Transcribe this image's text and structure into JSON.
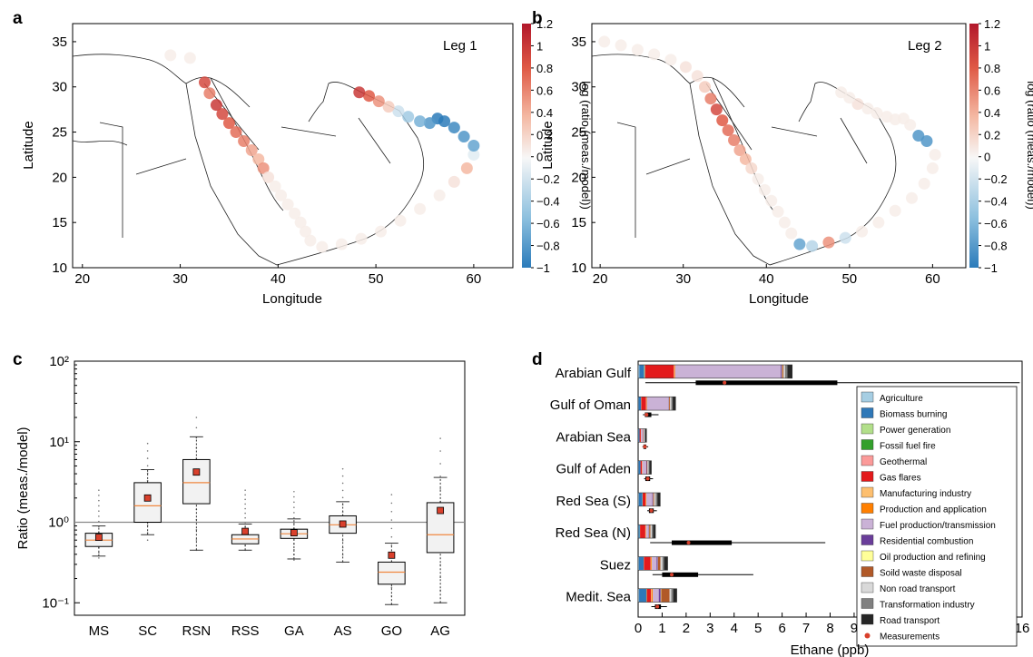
{
  "panels": {
    "a": {
      "letter": "a",
      "leg_label": "Leg 1",
      "xlabel": "Longitude",
      "ylabel": "Latitude",
      "xticks": [
        "20",
        "30",
        "40",
        "50",
        "60"
      ],
      "yticks": [
        "10",
        "15",
        "20",
        "25",
        "30",
        "35"
      ],
      "colorbar_label": "log (ratio (meas./model))",
      "colorbar_ticks": [
        "1.2",
        "1",
        "0.8",
        "0.6",
        "0.4",
        "0.2",
        "0",
        "−0.2",
        "−0.4",
        "−0.6",
        "−0.8",
        "−1"
      ]
    },
    "b": {
      "letter": "b",
      "leg_label": "Leg 2",
      "xlabel": "Longitude",
      "ylabel": "Latitude",
      "xticks": [
        "20",
        "30",
        "40",
        "50",
        "60"
      ],
      "yticks": [
        "10",
        "15",
        "20",
        "25",
        "30",
        "35"
      ],
      "colorbar_label": "log (ratio (meas./model))",
      "colorbar_ticks": [
        "1.2",
        "1",
        "0.8",
        "0.6",
        "0.4",
        "0.2",
        "0",
        "−0.2",
        "−0.4",
        "−0.6",
        "−0.8",
        "−1"
      ]
    },
    "c": {
      "letter": "c"
    },
    "d": {
      "letter": "d"
    }
  },
  "chart_data": [
    {
      "type": "scatter",
      "panel": "a",
      "title": "Leg 1",
      "xlabel": "Longitude",
      "ylabel": "Latitude",
      "xlim": [
        19,
        64
      ],
      "ylim": [
        10,
        37
      ],
      "colorbar": {
        "label": "log (ratio (meas./model))",
        "range": [
          -1,
          1.2
        ]
      },
      "track": [
        {
          "lon": 29,
          "lat": 33.5,
          "v": 0.05
        },
        {
          "lon": 31,
          "lat": 33.2,
          "v": 0.05
        },
        {
          "lon": 32.5,
          "lat": 30.5,
          "v": 0.9
        },
        {
          "lon": 33,
          "lat": 29.3,
          "v": 0.6
        },
        {
          "lon": 33.7,
          "lat": 28,
          "v": 1.0
        },
        {
          "lon": 34.3,
          "lat": 27,
          "v": 0.9
        },
        {
          "lon": 35,
          "lat": 26,
          "v": 0.8
        },
        {
          "lon": 35.7,
          "lat": 25,
          "v": 0.7
        },
        {
          "lon": 36.5,
          "lat": 24,
          "v": 0.6
        },
        {
          "lon": 37.3,
          "lat": 23,
          "v": 0.4
        },
        {
          "lon": 38,
          "lat": 22,
          "v": 0.3
        },
        {
          "lon": 38.5,
          "lat": 21,
          "v": 0.5
        },
        {
          "lon": 39,
          "lat": 20,
          "v": 0.1
        },
        {
          "lon": 39.7,
          "lat": 19,
          "v": 0.05
        },
        {
          "lon": 40.3,
          "lat": 18,
          "v": 0.05
        },
        {
          "lon": 41,
          "lat": 17,
          "v": 0.05
        },
        {
          "lon": 41.7,
          "lat": 16,
          "v": 0.05
        },
        {
          "lon": 42.3,
          "lat": 15,
          "v": 0.05
        },
        {
          "lon": 42.8,
          "lat": 14,
          "v": 0.05
        },
        {
          "lon": 43.3,
          "lat": 13,
          "v": 0.05
        },
        {
          "lon": 44.5,
          "lat": 12.3,
          "v": 0.05
        },
        {
          "lon": 46.5,
          "lat": 12.6,
          "v": 0.05
        },
        {
          "lon": 48.5,
          "lat": 13.2,
          "v": 0.05
        },
        {
          "lon": 50.5,
          "lat": 14,
          "v": 0.05
        },
        {
          "lon": 52.5,
          "lat": 15.2,
          "v": 0.05
        },
        {
          "lon": 54.5,
          "lat": 16.5,
          "v": 0.05
        },
        {
          "lon": 56.5,
          "lat": 18,
          "v": 0.05
        },
        {
          "lon": 58,
          "lat": 19.5,
          "v": 0.1
        },
        {
          "lon": 59.3,
          "lat": 21,
          "v": 0.3
        },
        {
          "lon": 60,
          "lat": 22.5,
          "v": -0.1
        },
        {
          "lon": 60,
          "lat": 23.5,
          "v": -0.7
        },
        {
          "lon": 59,
          "lat": 24.5,
          "v": -0.8
        },
        {
          "lon": 58,
          "lat": 25.5,
          "v": -0.9
        },
        {
          "lon": 57,
          "lat": 26.2,
          "v": -1.0
        },
        {
          "lon": 56.3,
          "lat": 26.5,
          "v": -1.0
        },
        {
          "lon": 55.5,
          "lat": 26,
          "v": -0.8
        },
        {
          "lon": 54.5,
          "lat": 26.2,
          "v": -0.6
        },
        {
          "lon": 53.3,
          "lat": 26.7,
          "v": -0.4
        },
        {
          "lon": 52.3,
          "lat": 27.3,
          "v": -0.2
        },
        {
          "lon": 51.3,
          "lat": 27.8,
          "v": 0.2
        },
        {
          "lon": 50.3,
          "lat": 28.4,
          "v": 0.5
        },
        {
          "lon": 49.3,
          "lat": 29,
          "v": 0.8
        },
        {
          "lon": 48.3,
          "lat": 29.4,
          "v": 1.0
        }
      ]
    },
    {
      "type": "scatter",
      "panel": "b",
      "title": "Leg 2",
      "xlabel": "Longitude",
      "ylabel": "Latitude",
      "xlim": [
        19,
        64
      ],
      "ylim": [
        10,
        37
      ],
      "colorbar": {
        "label": "log (ratio (meas./model))",
        "range": [
          -1,
          1.2
        ]
      },
      "track": [
        {
          "lon": 20.5,
          "lat": 35,
          "v": 0.05
        },
        {
          "lon": 22.5,
          "lat": 34.6,
          "v": 0.05
        },
        {
          "lon": 24.5,
          "lat": 34.1,
          "v": 0.05
        },
        {
          "lon": 26.5,
          "lat": 33.6,
          "v": 0.05
        },
        {
          "lon": 28.5,
          "lat": 33,
          "v": 0.05
        },
        {
          "lon": 30.3,
          "lat": 32.2,
          "v": 0.1
        },
        {
          "lon": 31.7,
          "lat": 31.2,
          "v": 0.1
        },
        {
          "lon": 32.6,
          "lat": 30,
          "v": 0.2
        },
        {
          "lon": 33.3,
          "lat": 28.7,
          "v": 0.6
        },
        {
          "lon": 34,
          "lat": 27.5,
          "v": 0.9
        },
        {
          "lon": 34.7,
          "lat": 26.3,
          "v": 0.8
        },
        {
          "lon": 35.4,
          "lat": 25.2,
          "v": 0.7
        },
        {
          "lon": 36.1,
          "lat": 24.1,
          "v": 0.6
        },
        {
          "lon": 36.8,
          "lat": 23,
          "v": 0.4
        },
        {
          "lon": 37.5,
          "lat": 22,
          "v": 0.3
        },
        {
          "lon": 38.2,
          "lat": 21,
          "v": 0.15
        },
        {
          "lon": 39,
          "lat": 19.8,
          "v": 0.05
        },
        {
          "lon": 39.8,
          "lat": 18.6,
          "v": 0.05
        },
        {
          "lon": 40.6,
          "lat": 17.4,
          "v": 0.05
        },
        {
          "lon": 41.4,
          "lat": 16.2,
          "v": 0.05
        },
        {
          "lon": 42.2,
          "lat": 15,
          "v": 0.05
        },
        {
          "lon": 43,
          "lat": 13.8,
          "v": 0.05
        },
        {
          "lon": 44,
          "lat": 12.6,
          "v": -0.7
        },
        {
          "lon": 45.5,
          "lat": 12.4,
          "v": -0.3
        },
        {
          "lon": 47.5,
          "lat": 12.8,
          "v": 0.5
        },
        {
          "lon": 49.5,
          "lat": 13.3,
          "v": -0.2
        },
        {
          "lon": 51.5,
          "lat": 14,
          "v": 0.05
        },
        {
          "lon": 53.5,
          "lat": 15,
          "v": 0.05
        },
        {
          "lon": 55.5,
          "lat": 16.3,
          "v": 0.05
        },
        {
          "lon": 57.5,
          "lat": 17.7,
          "v": 0.05
        },
        {
          "lon": 59,
          "lat": 19.3,
          "v": 0.05
        },
        {
          "lon": 60,
          "lat": 21,
          "v": 0.05
        },
        {
          "lon": 60.3,
          "lat": 22.5,
          "v": 0.05
        },
        {
          "lon": 59.3,
          "lat": 24,
          "v": -0.8
        },
        {
          "lon": 58.3,
          "lat": 24.6,
          "v": -0.8
        },
        {
          "lon": 57.3,
          "lat": 25.8,
          "v": 0.05
        },
        {
          "lon": 56.5,
          "lat": 26.5,
          "v": 0.05
        },
        {
          "lon": 55.5,
          "lat": 26.4,
          "v": 0.05
        },
        {
          "lon": 54.5,
          "lat": 26.7,
          "v": 0.05
        },
        {
          "lon": 53.3,
          "lat": 27.1,
          "v": 0.05
        },
        {
          "lon": 52.2,
          "lat": 27.6,
          "v": 0.05
        },
        {
          "lon": 51,
          "lat": 28.1,
          "v": 0.1
        },
        {
          "lon": 50,
          "lat": 28.8,
          "v": 0.05
        },
        {
          "lon": 49,
          "lat": 29.4,
          "v": 0.05
        }
      ]
    },
    {
      "type": "box",
      "panel": "c",
      "ylabel": "Ratio (meas./model)",
      "yscale": "log",
      "ylim": [
        0.07,
        100
      ],
      "yticks": [
        "10⁻¹",
        "10⁰",
        "10¹",
        "10²"
      ],
      "reference_line": 1,
      "categories": [
        "MS",
        "SC",
        "RSN",
        "RSS",
        "GA",
        "AS",
        "GO",
        "AG"
      ],
      "boxes": [
        {
          "whislo": 0.38,
          "q1": 0.5,
          "med": 0.6,
          "q3": 0.73,
          "whishi": 0.9,
          "mean": 0.65,
          "fmin": 0.36,
          "fmax": 2.5
        },
        {
          "whislo": 0.7,
          "q1": 1.0,
          "med": 1.6,
          "q3": 3.1,
          "whishi": 4.5,
          "mean": 2.0,
          "fmin": 0.6,
          "fmax": 9.5
        },
        {
          "whislo": 0.45,
          "q1": 1.7,
          "med": 3.1,
          "q3": 6.0,
          "whishi": 11.5,
          "mean": 4.2,
          "fmin": 0.45,
          "fmax": 20
        },
        {
          "whislo": 0.45,
          "q1": 0.54,
          "med": 0.62,
          "q3": 0.7,
          "whishi": 0.95,
          "mean": 0.77,
          "fmin": 0.45,
          "fmax": 2.5
        },
        {
          "whislo": 0.35,
          "q1": 0.63,
          "med": 0.72,
          "q3": 0.82,
          "whishi": 1.1,
          "mean": 0.74,
          "fmin": 0.34,
          "fmax": 2.4
        },
        {
          "whislo": 0.32,
          "q1": 0.73,
          "med": 0.93,
          "q3": 1.2,
          "whishi": 1.8,
          "mean": 0.95,
          "fmin": 0.32,
          "fmax": 4.6
        },
        {
          "whislo": 0.095,
          "q1": 0.17,
          "med": 0.24,
          "q3": 0.32,
          "whishi": 0.55,
          "mean": 0.39,
          "fmin": 0.095,
          "fmax": 2.2
        },
        {
          "whislo": 0.1,
          "q1": 0.42,
          "med": 0.7,
          "q3": 1.75,
          "whishi": 3.6,
          "mean": 1.4,
          "fmin": 0.1,
          "fmax": 11
        }
      ],
      "colors": {
        "box_fill": "#f2f2f2",
        "median": "#f0873f",
        "mean": "#d9402c",
        "reference": "#888888"
      }
    },
    {
      "type": "bar",
      "orientation": "horizontal",
      "stacked": true,
      "panel": "d",
      "xlabel": "Ethane (ppb)",
      "xlim": [
        0,
        16
      ],
      "xticks": [
        "0",
        "1",
        "2",
        "3",
        "4",
        "5",
        "6",
        "7",
        "8",
        "9",
        "10",
        "11",
        "12",
        "13",
        "14",
        "15",
        "16"
      ],
      "categories": [
        "Arabian Gulf",
        "Gulf of Oman",
        "Arabian Sea",
        "Gulf of Aden",
        "Red Sea (S)",
        "Red Sea (N)",
        "Suez",
        "Medit. Sea"
      ],
      "legend_position": "right",
      "series": [
        {
          "name": "Agriculture",
          "color": "#a6cee3",
          "values": [
            0.05,
            0.02,
            0.02,
            0.02,
            0.03,
            0.02,
            0.03,
            0.04
          ]
        },
        {
          "name": "Biomass burning",
          "color": "#2f78b8",
          "values": [
            0.2,
            0.1,
            0.04,
            0.08,
            0.15,
            0.05,
            0.2,
            0.3
          ]
        },
        {
          "name": "Power generation",
          "color": "#b2df8a",
          "values": [
            0.02,
            0.01,
            0,
            0,
            0.01,
            0.01,
            0.01,
            0.02
          ]
        },
        {
          "name": "Fossil fuel fire",
          "color": "#33a02c",
          "values": [
            0.01,
            0,
            0,
            0,
            0,
            0,
            0,
            0
          ]
        },
        {
          "name": "Geothermal",
          "color": "#fb9a99",
          "values": [
            0.01,
            0,
            0,
            0,
            0,
            0,
            0,
            0
          ]
        },
        {
          "name": "Gas flares",
          "color": "#e31a1c",
          "values": [
            1.2,
            0.2,
            0.05,
            0.06,
            0.12,
            0.22,
            0.28,
            0.18
          ]
        },
        {
          "name": "Manufacturing industry",
          "color": "#fdbf6f",
          "values": [
            0.02,
            0.01,
            0,
            0.01,
            0.01,
            0.01,
            0.02,
            0.03
          ]
        },
        {
          "name": "Production and application",
          "color": "#ff7f00",
          "values": [
            0.03,
            0.02,
            0.01,
            0.01,
            0.02,
            0.02,
            0.03,
            0.04
          ]
        },
        {
          "name": "Fuel production/transmission",
          "color": "#cab2d6",
          "values": [
            4.4,
            0.9,
            0.08,
            0.16,
            0.25,
            0.1,
            0.2,
            0.25
          ]
        },
        {
          "name": "Residential combustion",
          "color": "#6a3d9a",
          "values": [
            0.05,
            0.02,
            0.01,
            0.02,
            0.03,
            0.02,
            0.05,
            0.08
          ]
        },
        {
          "name": "Oil production and refining",
          "color": "#ffff99",
          "values": [
            0.02,
            0.01,
            0,
            0,
            0.01,
            0.01,
            0.01,
            0.02
          ]
        },
        {
          "name": "Soild waste disposal",
          "color": "#b15928",
          "values": [
            0.05,
            0.04,
            0.02,
            0.03,
            0.04,
            0.05,
            0.1,
            0.35
          ]
        },
        {
          "name": "Non road transport",
          "color": "#d9d9d9",
          "values": [
            0.06,
            0.05,
            0.03,
            0.04,
            0.06,
            0.06,
            0.08,
            0.07
          ]
        },
        {
          "name": "Transformation industry",
          "color": "#808080",
          "values": [
            0.1,
            0.06,
            0.03,
            0.04,
            0.07,
            0.05,
            0.07,
            0.08
          ]
        },
        {
          "name": "Road transport",
          "color": "#262626",
          "values": [
            0.2,
            0.12,
            0.06,
            0.08,
            0.12,
            0.1,
            0.15,
            0.15
          ]
        }
      ],
      "measurements": [
        {
          "q1": 2.4,
          "med": 3.6,
          "q3": 8.3,
          "min": 0.3,
          "max": 15.9,
          "point": 3.6
        },
        {
          "q1": 0.28,
          "med": 0.38,
          "q3": 0.55,
          "min": 0.2,
          "max": 0.85,
          "point": 0.35
        },
        {
          "q1": 0.22,
          "med": 0.28,
          "q3": 0.34,
          "min": 0.18,
          "max": 0.42,
          "point": 0.28
        },
        {
          "q1": 0.3,
          "med": 0.4,
          "q3": 0.5,
          "min": 0.25,
          "max": 0.62,
          "point": 0.4
        },
        {
          "q1": 0.45,
          "med": 0.55,
          "q3": 0.65,
          "min": 0.38,
          "max": 0.78,
          "point": 0.55
        },
        {
          "q1": 1.4,
          "med": 2.1,
          "q3": 3.9,
          "min": 0.5,
          "max": 7.8,
          "point": 2.1
        },
        {
          "q1": 1.0,
          "med": 1.4,
          "q3": 2.5,
          "min": 0.6,
          "max": 4.8,
          "point": 1.4
        },
        {
          "q1": 0.7,
          "med": 0.85,
          "q3": 0.95,
          "min": 0.55,
          "max": 1.2,
          "point": 0.8
        }
      ],
      "measurements_label": "Measurements",
      "measurement_color": "#d9402c"
    }
  ]
}
